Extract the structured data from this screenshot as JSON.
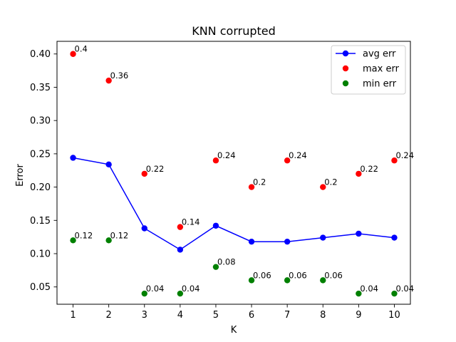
{
  "chart_data": {
    "type": "line",
    "title": "KNN corrupted",
    "xlabel": "K",
    "ylabel": "Error",
    "x": [
      1,
      2,
      3,
      4,
      5,
      6,
      7,
      8,
      9,
      10
    ],
    "xlim": [
      0.55,
      10.45
    ],
    "ylim": [
      0.024,
      0.419
    ],
    "xticks": [
      "1",
      "2",
      "3",
      "4",
      "5",
      "6",
      "7",
      "8",
      "9",
      "10"
    ],
    "yticks": [
      "0.05",
      "0.10",
      "0.15",
      "0.20",
      "0.25",
      "0.30",
      "0.35",
      "0.40"
    ],
    "ytick_values": [
      0.05,
      0.1,
      0.15,
      0.2,
      0.25,
      0.3,
      0.35,
      0.4
    ],
    "grid": false,
    "legend_position": "top-right",
    "series": [
      {
        "name": "avg err",
        "style": "line-marker",
        "color": "#0000ff",
        "values": [
          0.244,
          0.234,
          0.138,
          0.106,
          0.142,
          0.118,
          0.118,
          0.124,
          0.13,
          0.124
        ]
      },
      {
        "name": "max err",
        "style": "marker",
        "color": "#ff0000",
        "values": [
          0.4,
          0.36,
          0.22,
          0.14,
          0.24,
          0.2,
          0.24,
          0.2,
          0.22,
          0.24
        ],
        "labels": [
          "0.4",
          "0.36",
          "0.22",
          "0.14",
          "0.24",
          "0.2",
          "0.24",
          "0.2",
          "0.22",
          "0.24"
        ]
      },
      {
        "name": "min err",
        "style": "marker",
        "color": "#008000",
        "values": [
          0.12,
          0.12,
          0.04,
          0.04,
          0.08,
          0.06,
          0.06,
          0.06,
          0.04,
          0.04
        ],
        "labels": [
          "0.12",
          "0.12",
          "0.04",
          "0.04",
          "0.08",
          "0.06",
          "0.06",
          "0.06",
          "0.04",
          "0.04"
        ]
      }
    ]
  }
}
